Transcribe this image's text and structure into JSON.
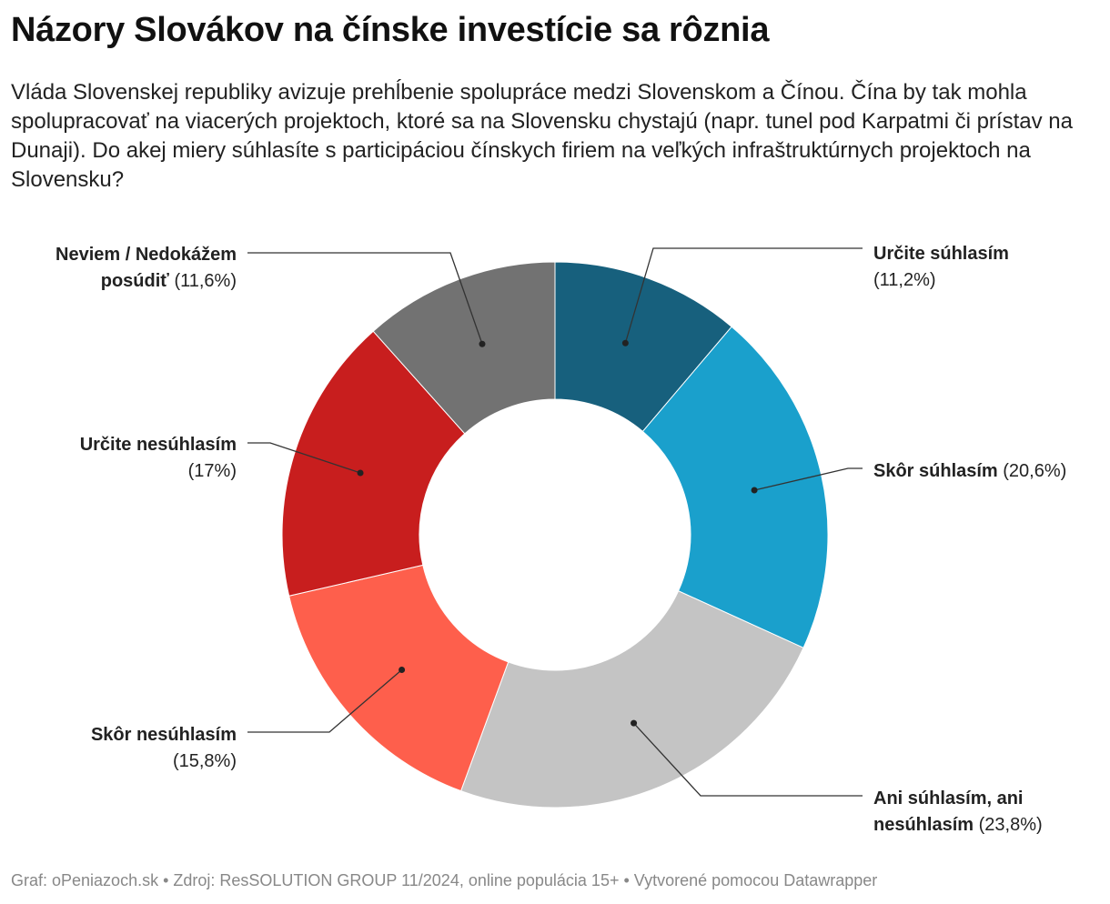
{
  "title": "Názory Slovákov na čínske investície sa rôznia",
  "subtitle": "Vláda Slovenskej republiky avizuje prehĺbenie spolupráce medzi Slovenskom a Čínou. Čína by tak mohla spolupracovať na viacerých projektoch, ktoré sa na Slovensku chystajú (napr. tunel pod Karpatmi či prístav na Dunaji). Do akej miery súhlasíte s participáciou čínskych firiem na veľkých infraštruktúrnych projektoch na Slovensku?",
  "footer": "Graf: oPeniazoch.sk • Zdroj: ResSOLUTION GROUP 11/2024, online populácia 15+ • Vytvorené pomocou Datawrapper",
  "chart_data": {
    "type": "pie",
    "variant": "donut",
    "title": "Názory Slovákov na čínske investície sa rôznia",
    "categories": [
      "Určite súhlasím",
      "Skôr súhlasím",
      "Ani súhlasím, ani nesúhlasím",
      "Skôr nesúhlasím",
      "Určite nesúhlasím",
      "Neviem / Nedokážem posúdiť"
    ],
    "values": [
      11.2,
      20.6,
      23.8,
      15.8,
      17,
      11.6
    ],
    "colors": [
      "#17607d",
      "#1aa0cc",
      "#c4c4c4",
      "#fe5f4c",
      "#c81e1e",
      "#727272"
    ],
    "slices": [
      {
        "name": "Určite súhlasím",
        "value": 11.2,
        "color": "#17607d",
        "label_lines": [
          {
            "bold": "Určite súhlasím",
            "normal": ""
          },
          {
            "bold": "",
            "normal": "(11,2%)"
          }
        ]
      },
      {
        "name": "Skôr súhlasím",
        "value": 20.6,
        "color": "#1aa0cc",
        "label_lines": [
          {
            "bold": "Skôr súhlasím",
            "normal": " (20,6%)"
          }
        ]
      },
      {
        "name": "Ani súhlasím, ani nesúhlasím",
        "value": 23.8,
        "color": "#c4c4c4",
        "label_lines": [
          {
            "bold": "Ani súhlasím, ani",
            "normal": ""
          },
          {
            "bold": "nesúhlasím",
            "normal": " (23,8%)"
          }
        ]
      },
      {
        "name": "Skôr nesúhlasím",
        "value": 15.8,
        "color": "#fe5f4c",
        "label_lines": [
          {
            "bold": "Skôr nesúhlasím",
            "normal": ""
          },
          {
            "bold": "",
            "normal": "(15,8%)"
          }
        ]
      },
      {
        "name": "Určite nesúhlasím",
        "value": 17,
        "color": "#c81e1e",
        "label_lines": [
          {
            "bold": "Určite nesúhlasím",
            "normal": ""
          },
          {
            "bold": "",
            "normal": "(17%)"
          }
        ]
      },
      {
        "name": "Neviem / Nedokážem posúdiť",
        "value": 11.6,
        "color": "#727272",
        "label_lines": [
          {
            "bold": "Neviem / Nedokážem",
            "normal": ""
          },
          {
            "bold": "posúdiť",
            "normal": " (11,6%)"
          }
        ]
      }
    ]
  }
}
